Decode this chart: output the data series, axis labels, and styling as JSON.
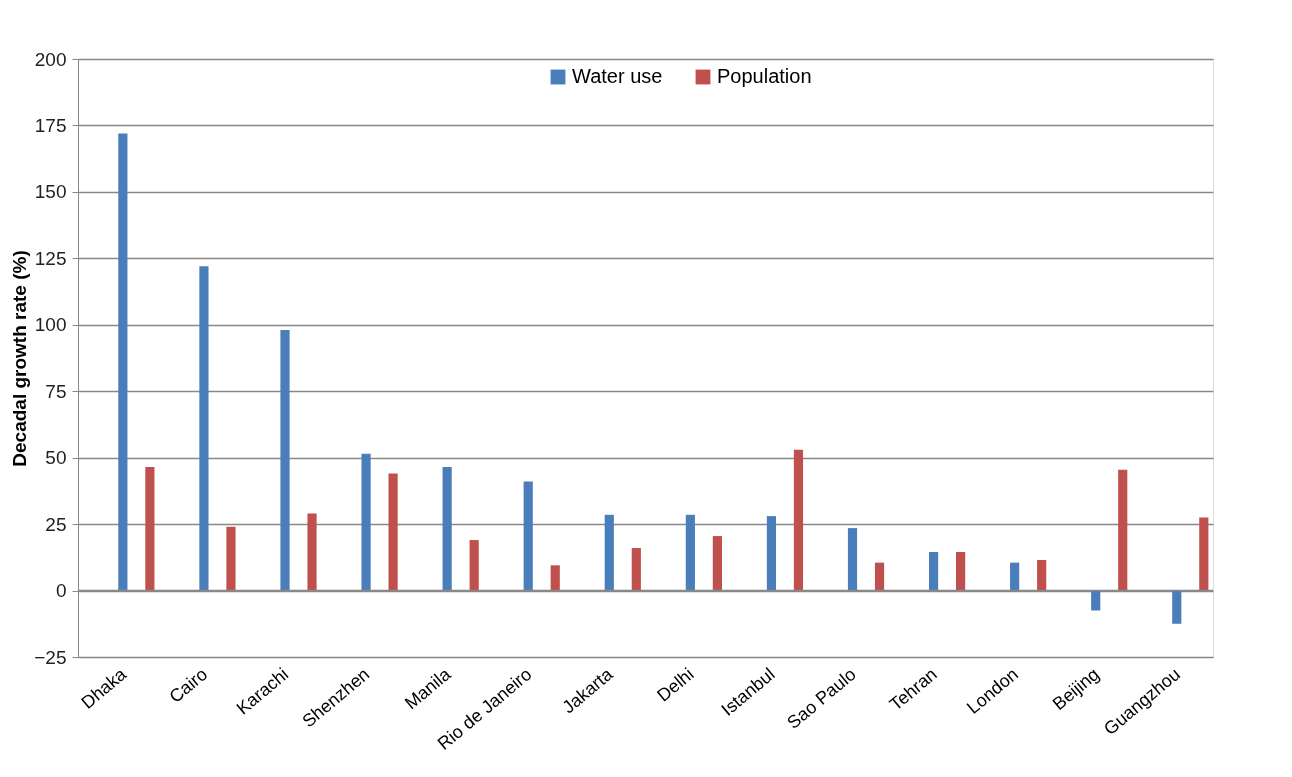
{
  "chart_data": {
    "type": "bar",
    "ylabel": "Decadal growth rate (%)",
    "categories": [
      "Dhaka",
      "Cairo",
      "Karachi",
      "Shenzhen",
      "Manila",
      "Rio de Janeiro",
      "Jakarta",
      "Delhi",
      "Istanbul",
      "Sao Paulo",
      "Tehran",
      "London",
      "Beijing",
      "Guangzhou"
    ],
    "series": [
      {
        "name": "Water use",
        "color": "#4a7ebb",
        "values": [
          172,
          122,
          98,
          51.5,
          46.5,
          41,
          28.5,
          28.5,
          28,
          23.5,
          14.5,
          10.5,
          -7.5,
          -12.5
        ]
      },
      {
        "name": "Population",
        "color": "#c0504d",
        "values": [
          46.5,
          24,
          29,
          44,
          19,
          9.5,
          16,
          20.5,
          53,
          10.5,
          14.5,
          11.5,
          45.5,
          27.5
        ]
      }
    ],
    "ylim": [
      -25,
      200
    ],
    "yticks": [
      -25,
      0,
      25,
      50,
      75,
      100,
      125,
      150,
      175,
      200
    ],
    "grid": "y",
    "legend": "top"
  }
}
